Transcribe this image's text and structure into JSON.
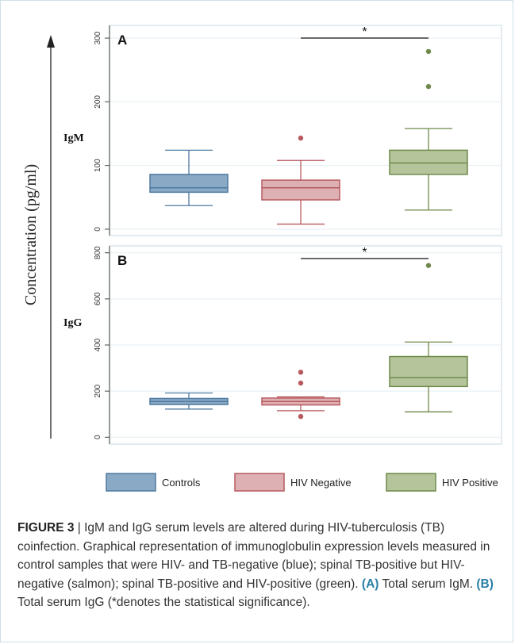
{
  "chart_data": [
    {
      "type": "box",
      "panel": "A",
      "row_label": "IgM",
      "ylim": [
        -10,
        320
      ],
      "yticks": [
        0,
        100,
        200,
        300
      ],
      "grid": true,
      "significance": {
        "from": "HIV Negative",
        "to": "HIV Positive",
        "label": "*"
      },
      "series": [
        {
          "name": "Controls",
          "color": "#8aa9c4",
          "stroke": "#4e7aa0",
          "whisker_low": 37,
          "q1": 58,
          "median": 65,
          "q3": 86,
          "whisker_high": 124,
          "outliers": []
        },
        {
          "name": "HIV Negative",
          "color": "#ddb1b3",
          "stroke": "#b85a60",
          "whisker_low": 8,
          "q1": 46,
          "median": 65,
          "q3": 77,
          "whisker_high": 108,
          "outliers": [
            143
          ]
        },
        {
          "name": "HIV Positive",
          "color": "#b6c49c",
          "stroke": "#6f8a4b",
          "whisker_low": 30,
          "q1": 86,
          "median": 104,
          "q3": 124,
          "whisker_high": 158,
          "outliers": [
            224,
            279
          ]
        }
      ]
    },
    {
      "type": "box",
      "panel": "B",
      "row_label": "IgG",
      "ylim": [
        -30,
        830
      ],
      "yticks": [
        0,
        200,
        400,
        600,
        800
      ],
      "grid": true,
      "significance": {
        "from": "HIV Negative",
        "to": "HIV Positive",
        "label": "*"
      },
      "series": [
        {
          "name": "Controls",
          "color": "#8aa9c4",
          "stroke": "#4e7aa0",
          "whisker_low": 122,
          "q1": 142,
          "median": 155,
          "q3": 168,
          "whisker_high": 192,
          "outliers": []
        },
        {
          "name": "HIV Negative",
          "color": "#ddb1b3",
          "stroke": "#b85a60",
          "whisker_low": 115,
          "q1": 140,
          "median": 155,
          "q3": 170,
          "whisker_high": 175,
          "outliers": [
            90,
            235,
            282
          ]
        },
        {
          "name": "HIV Positive",
          "color": "#b6c49c",
          "stroke": "#6f8a4b",
          "whisker_low": 110,
          "q1": 220,
          "median": 258,
          "q3": 350,
          "whisker_high": 413,
          "outliers": [
            745
          ]
        }
      ]
    }
  ],
  "y_axis_title": "Concentration (pg/ml)",
  "legend": {
    "placement": "bottom",
    "entries": [
      "Controls",
      "HIV Negative",
      "HIV Positive"
    ]
  },
  "caption": {
    "figure_label": "FIGURE 3",
    "text_1": " | IgM and IgG serum levels are altered during HIV-tuberculosis (TB) coinfection. Graphical representation of immunoglobulin expression levels measured in control samples that were HIV- and TB-negative (blue); spinal TB-positive but HIV-negative (salmon); spinal TB-positive and HIV-positive (green). ",
    "ref_a": "(A)",
    "text_2": " Total serum IgM. ",
    "ref_b": "(B)",
    "text_3": " Total serum IgG (*denotes the statistical significance)."
  }
}
